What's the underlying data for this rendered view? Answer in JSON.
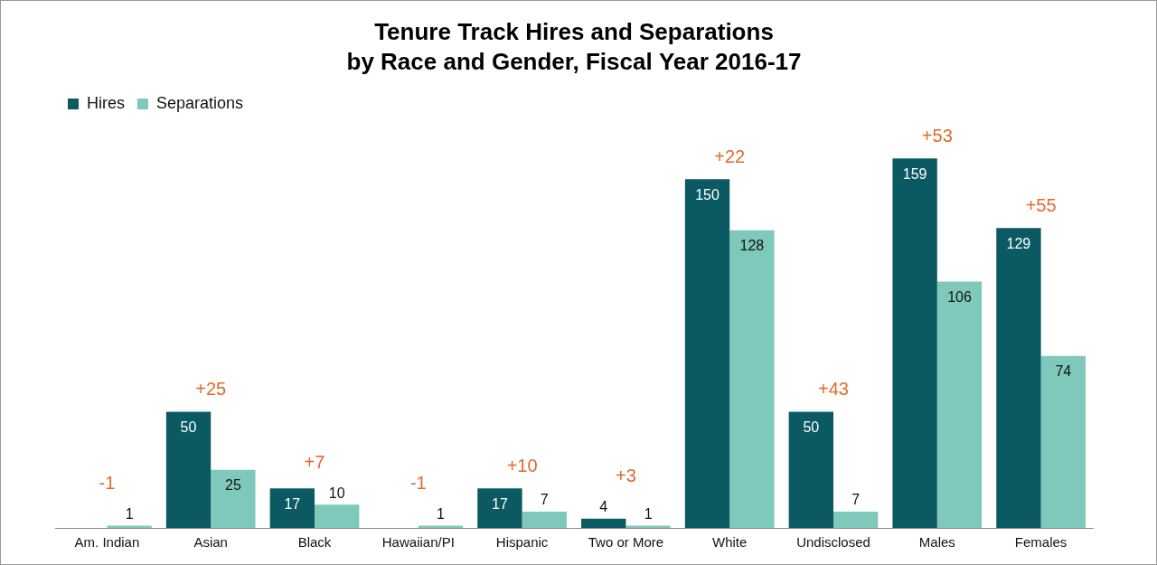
{
  "chart_data": {
    "type": "bar",
    "title": [
      "Tenure Track Hires and Separations",
      "by Race and Gender, Fiscal Year 2016-17"
    ],
    "categories": [
      "Am. Indian",
      "Asian",
      "Black",
      "Hawaiian/PI",
      "Hispanic",
      "Two or More",
      "White",
      "Undisclosed",
      "Males",
      "Females"
    ],
    "series": [
      {
        "name": "Hires",
        "color": "#0b5a63",
        "values": [
          null,
          50,
          17,
          null,
          17,
          4,
          150,
          50,
          159,
          129
        ]
      },
      {
        "name": "Separations",
        "color": "#7ec8bc",
        "values": [
          1,
          25,
          10,
          1,
          7,
          1,
          128,
          7,
          106,
          74
        ]
      }
    ],
    "annotations": [
      "-1",
      "+25",
      "+7",
      "-1",
      "+10",
      "+3",
      "+22",
      "+43",
      "+53",
      "+55"
    ],
    "ylim": [
      0,
      175
    ],
    "grid": false,
    "legend": "top-left",
    "data_labels": true,
    "tick_labels": "x"
  }
}
